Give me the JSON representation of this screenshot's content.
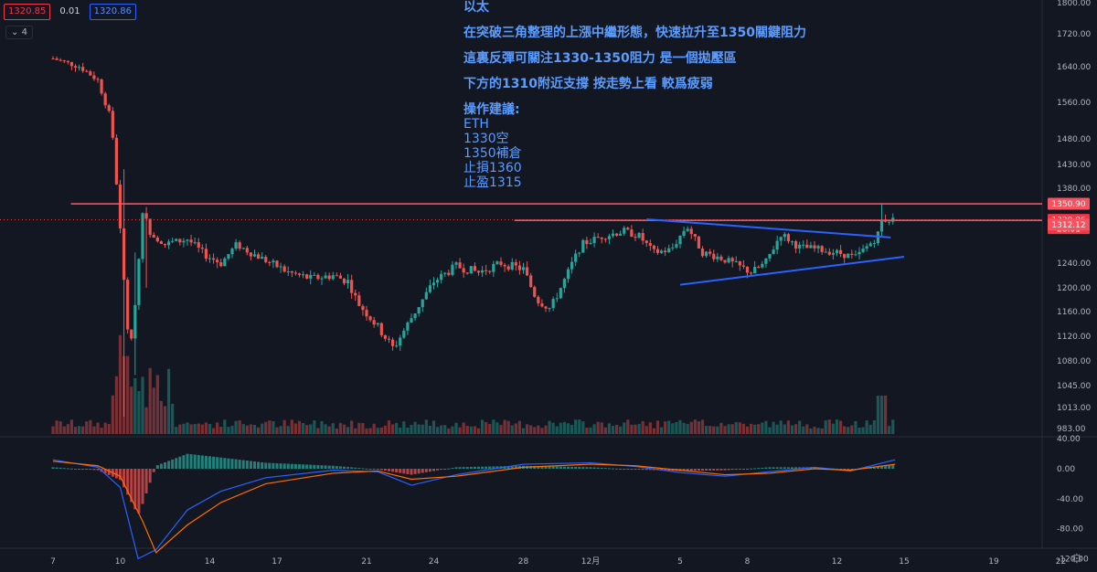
{
  "toolbar": {
    "price_left": "1320.85",
    "spread": "0.01",
    "price_right": "1320.86",
    "collapse_label": "4"
  },
  "annotation": {
    "lines": [
      "以太",
      "在突破三角整理的上漲中繼形態，快速拉升至1350關鍵阻力",
      "這裏反彈可關注1330-1350阻力 是一個拋壓區",
      "下方的1310附近支撐 按走勢上看 較爲疲弱",
      "操作建議:",
      "ETH",
      "1330空",
      "1350補倉",
      "止損1360",
      "止盈1315"
    ]
  },
  "colors": {
    "background": "#131722",
    "up": "#26a69a",
    "down": "#ef5350",
    "resistance": "#f7525f",
    "trendline": "#2962ff",
    "macd": "#2962ff",
    "signal": "#ff6d00",
    "annotation_text": "#5b9cff",
    "axis_text": "#b2b5be"
  },
  "chart_data": {
    "type": "candlestick",
    "symbol": "ETH",
    "price_axis_ticks": [
      1800.0,
      1720.0,
      1640.0,
      1560.0,
      1480.0,
      1430.0,
      1380.0,
      1240.0,
      1200.0,
      1160.0,
      1120.0,
      1080.0,
      1045.0,
      1013.0,
      983.0
    ],
    "price_badges": [
      {
        "label": "1350.90",
        "value": 1350.9,
        "color": "#f7525f"
      },
      {
        "label": "1320.86",
        "sub": "28:01",
        "value": 1320.86,
        "color": "#f23645"
      },
      {
        "label": "1312.12",
        "value": 1312.12,
        "color": "#f7525f"
      }
    ],
    "date_axis_ticks": [
      {
        "label": "7",
        "day": 0
      },
      {
        "label": "10",
        "day": 3
      },
      {
        "label": "14",
        "day": 7
      },
      {
        "label": "17",
        "day": 10
      },
      {
        "label": "21",
        "day": 14
      },
      {
        "label": "24",
        "day": 17
      },
      {
        "label": "28",
        "day": 21
      },
      {
        "label": "12月",
        "day": 24
      },
      {
        "label": "5",
        "day": 28
      },
      {
        "label": "8",
        "day": 31
      },
      {
        "label": "12",
        "day": 35
      },
      {
        "label": "15",
        "day": 38
      },
      {
        "label": "19",
        "day": 42
      },
      {
        "label": "22",
        "day": 45
      }
    ],
    "macd_axis_ticks": [
      40.0,
      0.0,
      -40.0,
      -80.0,
      -120.0
    ],
    "resistance_lines": [
      {
        "price": 1350.9,
        "from_day": 0.8,
        "to_day": 37.6
      },
      {
        "price": 1320,
        "from_day": 20.6,
        "to_day": 37.6
      }
    ],
    "triangle": {
      "upper": [
        {
          "day": 26.5,
          "price": 1322
        },
        {
          "day": 37.4,
          "price": 1288
        }
      ],
      "lower": [
        {
          "day": 28.0,
          "price": 1205
        },
        {
          "day": 38.0,
          "price": 1252
        }
      ]
    },
    "anchors": [
      [
        0,
        1660
      ],
      [
        1.2,
        1640
      ],
      [
        2.0,
        1610
      ],
      [
        2.6,
        1520
      ],
      [
        3.0,
        1300
      ],
      [
        3.3,
        1140
      ],
      [
        3.5,
        1110
      ],
      [
        3.8,
        1230
      ],
      [
        4.0,
        1340
      ],
      [
        4.3,
        1300
      ],
      [
        5.0,
        1275
      ],
      [
        6.0,
        1285
      ],
      [
        6.8,
        1255
      ],
      [
        7.5,
        1240
      ],
      [
        8.2,
        1275
      ],
      [
        8.8,
        1260
      ],
      [
        9.5,
        1245
      ],
      [
        10.5,
        1225
      ],
      [
        11.5,
        1215
      ],
      [
        12.5,
        1220
      ],
      [
        13.2,
        1210
      ],
      [
        13.6,
        1175
      ],
      [
        14.5,
        1135
      ],
      [
        15.2,
        1100
      ],
      [
        16.0,
        1150
      ],
      [
        17.0,
        1210
      ],
      [
        18.0,
        1235
      ],
      [
        19.0,
        1225
      ],
      [
        20.0,
        1240
      ],
      [
        21.0,
        1230
      ],
      [
        21.6,
        1180
      ],
      [
        22.2,
        1165
      ],
      [
        23.0,
        1225
      ],
      [
        23.6,
        1275
      ],
      [
        24.5,
        1290
      ],
      [
        25.5,
        1300
      ],
      [
        26.2,
        1290
      ],
      [
        26.8,
        1260
      ],
      [
        27.6,
        1265
      ],
      [
        28.3,
        1310
      ],
      [
        29.0,
        1260
      ],
      [
        29.8,
        1250
      ],
      [
        30.6,
        1235
      ],
      [
        31.2,
        1225
      ],
      [
        31.8,
        1240
      ],
      [
        32.5,
        1295
      ],
      [
        33.3,
        1270
      ],
      [
        34.3,
        1265
      ],
      [
        35.2,
        1258
      ],
      [
        35.8,
        1250
      ],
      [
        36.2,
        1265
      ],
      [
        36.8,
        1290
      ],
      [
        37.0,
        1320
      ],
      [
        37.3,
        1322
      ],
      [
        37.6,
        1320
      ]
    ],
    "notable_wicks": [
      {
        "day": 3.1,
        "high": 1420,
        "low": 1000
      },
      {
        "day": 3.6,
        "high": 1260,
        "low": 1060
      },
      {
        "day": 4.2,
        "high": 1345,
        "low": 1200
      },
      {
        "day": 37.0,
        "high": 1350.9,
        "low": 1290
      }
    ],
    "macd": [
      [
        0,
        12
      ],
      [
        2.0,
        2
      ],
      [
        3.0,
        -25
      ],
      [
        3.8,
        -120
      ],
      [
        4.6,
        -108
      ],
      [
        6.0,
        -55
      ],
      [
        7.5,
        -30
      ],
      [
        9.5,
        -12
      ],
      [
        12.5,
        -2
      ],
      [
        14.5,
        -4
      ],
      [
        16.0,
        -22
      ],
      [
        18.0,
        -8
      ],
      [
        21.0,
        6
      ],
      [
        24.0,
        8
      ],
      [
        26.0,
        3
      ],
      [
        28.0,
        -5
      ],
      [
        30.0,
        -10
      ],
      [
        32.0,
        -4
      ],
      [
        34.0,
        2
      ],
      [
        35.6,
        -3
      ],
      [
        37.6,
        12
      ]
    ],
    "signal": [
      [
        0,
        10
      ],
      [
        2.0,
        4
      ],
      [
        3.0,
        -10
      ],
      [
        4.0,
        -70
      ],
      [
        4.6,
        -112
      ],
      [
        6.0,
        -75
      ],
      [
        7.5,
        -45
      ],
      [
        9.5,
        -20
      ],
      [
        12.5,
        -6
      ],
      [
        14.5,
        -3
      ],
      [
        16.0,
        -14
      ],
      [
        18.0,
        -10
      ],
      [
        21.0,
        2
      ],
      [
        24.0,
        6
      ],
      [
        26.0,
        4
      ],
      [
        28.0,
        -2
      ],
      [
        30.0,
        -8
      ],
      [
        32.0,
        -6
      ],
      [
        34.0,
        0
      ],
      [
        35.6,
        -2
      ],
      [
        37.6,
        6
      ]
    ]
  }
}
